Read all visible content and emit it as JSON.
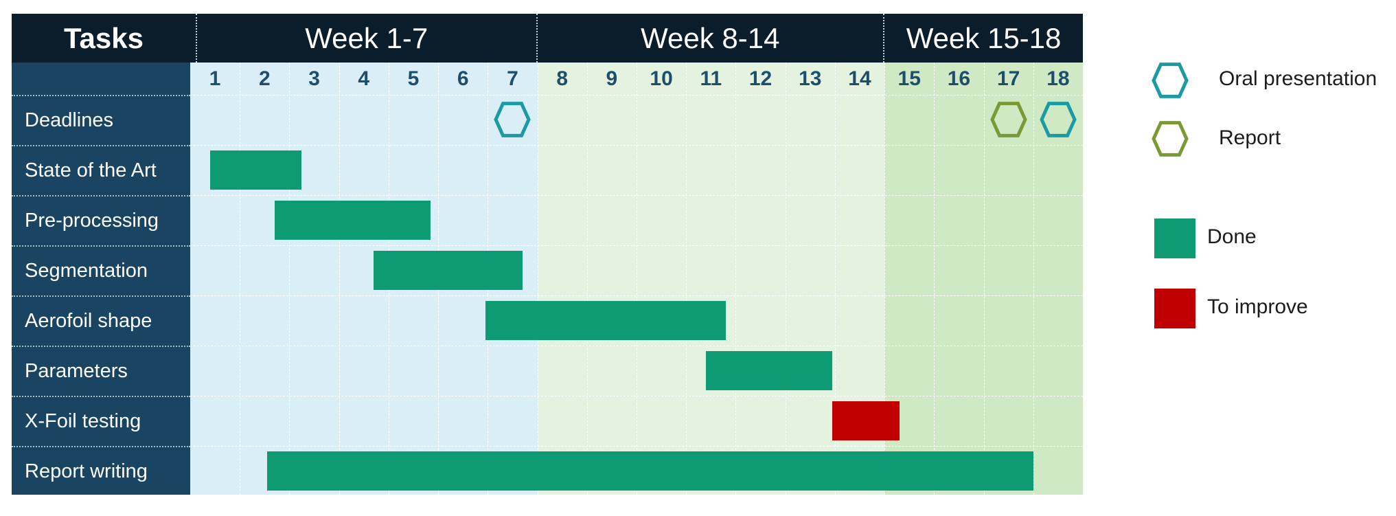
{
  "chart_data": {
    "type": "gantt",
    "header": {
      "tasks_label": "Tasks",
      "periods": [
        {
          "label": "Week 1-7",
          "start": 1,
          "end": 7,
          "color": "#daeef8"
        },
        {
          "label": "Week 8-14",
          "start": 8,
          "end": 14,
          "color": "#e4f3df"
        },
        {
          "label": "Week 15-18",
          "start": 15,
          "end": 18,
          "color": "#cfe9c4"
        }
      ]
    },
    "weeks": [
      "1",
      "2",
      "3",
      "4",
      "5",
      "6",
      "7",
      "8",
      "9",
      "10",
      "11",
      "12",
      "13",
      "14",
      "15",
      "16",
      "17",
      "18"
    ],
    "rows": [
      "Deadlines",
      "State of the Art",
      "Pre-processing",
      "Segmentation",
      "Aerofoil shape",
      "Parameters",
      "X-Foil testing",
      "Report writing"
    ],
    "tasks": [
      {
        "name": "State of the Art",
        "start": 1.4,
        "end": 3.25,
        "status": "Done"
      },
      {
        "name": "Pre-processing",
        "start": 2.7,
        "end": 5.85,
        "status": "Done"
      },
      {
        "name": "Segmentation",
        "start": 4.7,
        "end": 7.7,
        "status": "Done"
      },
      {
        "name": "Aerofoil shape",
        "start": 6.95,
        "end": 11.8,
        "status": "Done"
      },
      {
        "name": "Parameters",
        "start": 11.4,
        "end": 13.95,
        "status": "Done"
      },
      {
        "name": "X-Foil testing",
        "start": 13.95,
        "end": 15.3,
        "status": "To improve"
      },
      {
        "name": "Report writing",
        "start": 2.55,
        "end": 18.0,
        "status": "Done"
      }
    ],
    "deadlines": [
      {
        "week": 7,
        "type": "Oral presentation"
      },
      {
        "week": 17,
        "type": "Report"
      },
      {
        "week": 18,
        "type": "Oral presentation"
      }
    ],
    "legend": {
      "markers": [
        {
          "label": "Oral presentation",
          "color": "#1a9ba3"
        },
        {
          "label": "Report",
          "color": "#7b9a35"
        }
      ],
      "statuses": [
        {
          "label": "Done",
          "color": "#0e9b74"
        },
        {
          "label": "To improve",
          "color": "#c00000"
        }
      ]
    }
  }
}
